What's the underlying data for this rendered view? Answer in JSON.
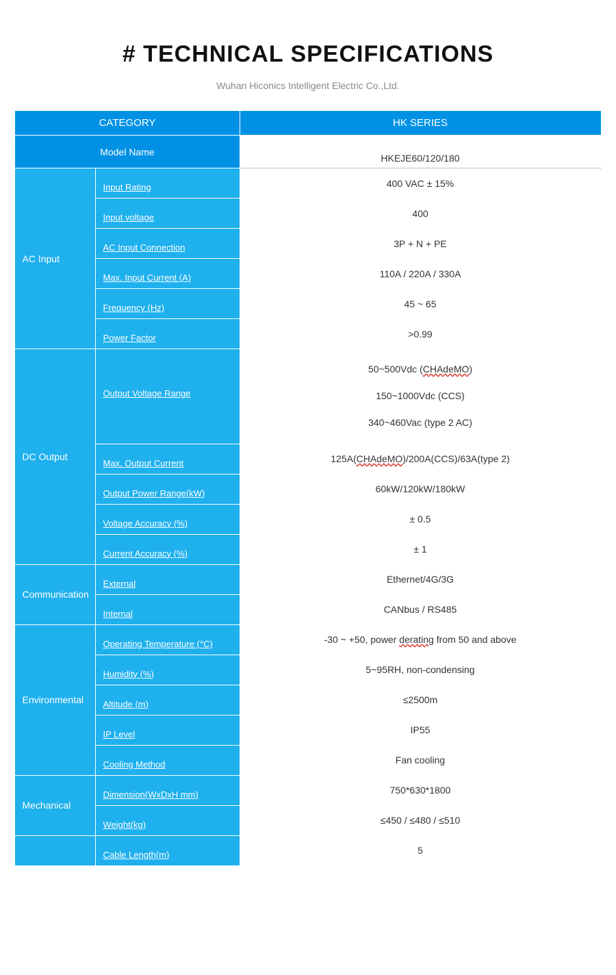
{
  "title": "# TECHNICAL SPECIFICATIONS",
  "subtitle": "Wuhan Hiconics Intelligent Electric Co.,Ltd.",
  "header": {
    "category": "CATEGORY",
    "series": "HK SERIES"
  },
  "model": {
    "label": "Model Name",
    "value": "HKEJE60/120/180"
  },
  "colors": {
    "header_bg": "#0091e5",
    "body_bg": "#1fb0ee",
    "text_white": "#ffffff",
    "text_dark": "#333333",
    "subtitle_gray": "#888888",
    "row_border": "#bfbfbf",
    "spell_underline": "#d93025"
  },
  "groups": [
    {
      "name": "AC Input",
      "rows": [
        {
          "param": "Input Rating",
          "value": "400 VAC ± 15%"
        },
        {
          "param": "Input voltage",
          "value": "400"
        },
        {
          "param": "AC Input Connection",
          "value": "3P + N + PE"
        },
        {
          "param": "Max. Input Current (A)",
          "value": "110A / 220A / 330A"
        },
        {
          "param": "Frequency (Hz)",
          "value": "45 ~ 65"
        },
        {
          "param": "Power Factor",
          "value": ">0.99"
        }
      ]
    },
    {
      "name": "DC Output",
      "rows": [
        {
          "param": "Output Voltage Range",
          "value_lines": [
            {
              "pre": "50~500Vdc (",
              "spell": "CHAdeMO",
              "post": ")"
            },
            {
              "plain": "150~1000Vdc (CCS)"
            },
            {
              "plain": "340~460Vac (type 2 AC)"
            }
          ]
        },
        {
          "param": "Max. Output Current",
          "value_rich": {
            "pre": "125A(",
            "spell": "CHAdeMO",
            "post": ")/200A(CCS)/63A(type 2)"
          }
        },
        {
          "param": "Output Power Range(kW)",
          "value": "60kW/120kW/180kW"
        },
        {
          "param": "Voltage Accuracy (%)",
          "value": "± 0.5"
        },
        {
          "param": "Current Accuracy (%)",
          "value": "± 1"
        }
      ]
    },
    {
      "name": "Communication",
      "rows": [
        {
          "param": "External",
          "value": "Ethernet/4G/3G"
        },
        {
          "param": "Internal",
          "value": "CANbus / RS485"
        }
      ]
    },
    {
      "name": "Environmental",
      "rows": [
        {
          "param": "Operating Temperature (°C)",
          "value_rich": {
            "pre": "-30 ~ +50, power ",
            "spell": "derating",
            "post": " from 50 and above"
          }
        },
        {
          "param": "Humidity (%)",
          "value": "5~95RH, non-condensing"
        },
        {
          "param": "Altitude (m)",
          "value": "≤2500m"
        },
        {
          "param": "IP Level",
          "value": "IP55"
        },
        {
          "param": "Cooling Method",
          "value": "Fan cooling"
        }
      ]
    },
    {
      "name": "Mechanical",
      "rows": [
        {
          "param": "Dimension(WxDxH mm)",
          "value": "750*630*1800"
        },
        {
          "param": "Weight(kg)",
          "value": "≤450 / ≤480 / ≤510"
        }
      ]
    },
    {
      "name": "",
      "rows": [
        {
          "param": "Cable Length(m)",
          "value": "5"
        }
      ]
    }
  ]
}
